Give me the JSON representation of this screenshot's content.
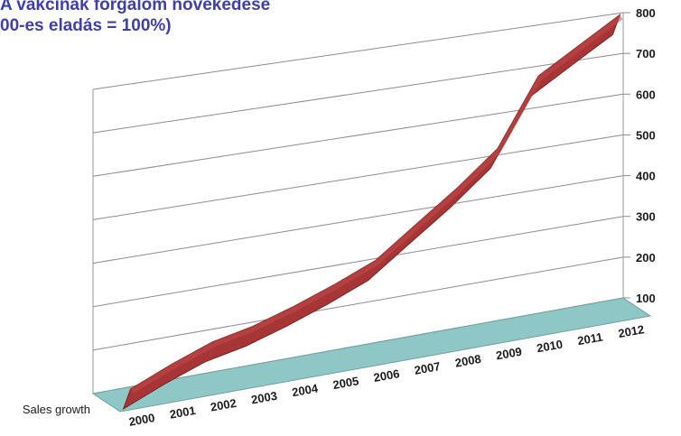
{
  "chart_data": {
    "type": "line",
    "title_lines": [
      "A vakcinák forgalom növekedése",
      "00-es eladás = 100%)"
    ],
    "categories": [
      "2000",
      "2001",
      "2002",
      "2003",
      "2004",
      "2005",
      "2006",
      "2007",
      "2008",
      "2009",
      "2010",
      "2011",
      "2012"
    ],
    "series": [
      {
        "name": "Sales growth",
        "values": [
          100,
          140,
          175,
          195,
          225,
          260,
          300,
          370,
          440,
          520,
          680,
          740,
          800
        ],
        "color": "#a73535"
      }
    ],
    "yticks": [
      "100",
      "200",
      "300",
      "400",
      "500",
      "600",
      "700",
      "800"
    ],
    "ylim": [
      100,
      800
    ],
    "floor_color": "#8fc6c6",
    "grid": true
  }
}
